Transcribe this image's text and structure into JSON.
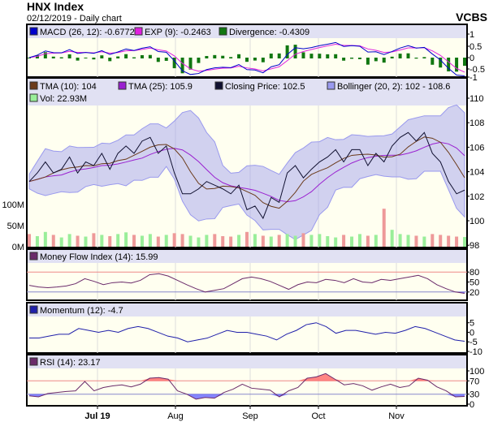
{
  "header": {
    "title": "HNX Index",
    "subtitle": "02/12/2019 - Daily chart",
    "brand": "VCBS"
  },
  "colors": {
    "plot_bg": "#fffff0",
    "legend_bg": "#e1e1f3",
    "macd": "#0000cc",
    "exp": "#e020e0",
    "divergence": "#117711",
    "tma10": "#6b3a1a",
    "tma25": "#9a20d0",
    "close": "#101030",
    "bollinger": "#9999ee",
    "vol_up": "#99ee99",
    "vol_down": "#ee9999",
    "mfi": "#6a2a6a",
    "momentum": "#2020aa",
    "rsi": "#6a2a6a",
    "over": "#ff6666",
    "under": "#6666ff"
  },
  "chart_data": [
    {
      "panel": "macd",
      "type": "line",
      "legend": [
        "MACD (26, 12): -0.6772",
        "EXP (9): -0.2463",
        "Divergence: -0.4309"
      ],
      "ylim": [
        -1,
        1
      ],
      "yticks": [
        "1",
        "0.5",
        "0",
        "-0.5",
        "-1"
      ]
    },
    {
      "panel": "price",
      "type": "line",
      "legend": [
        "TMA (10): 104",
        "TMA (25): 105.9",
        "Closing Price: 102.5",
        "Bollinger (20, 2): 102 - 108.6",
        "Vol: 22.93M"
      ],
      "ylim": [
        98,
        110
      ],
      "yticks": [
        "110",
        "108",
        "106",
        "104",
        "102",
        "100",
        "98"
      ],
      "vol_ticks": [
        "100M",
        "50M",
        "0M"
      ],
      "vol_max": 100,
      "close": [
        103.2,
        103.9,
        104.8,
        103.9,
        104.2,
        105.2,
        103.9,
        104.8,
        104.5,
        105.5,
        104.2,
        105.5,
        106.1,
        105.5,
        106.5,
        106.8,
        105.5,
        106.1,
        103.9,
        102.2,
        102.2,
        102.6,
        103.2,
        102.9,
        102.6,
        102.2,
        102.9,
        100.9,
        101.2,
        100.2,
        101.9,
        101.5,
        103.9,
        104.5,
        103.5,
        104.2,
        104.8,
        105.2,
        105.8,
        104.8,
        105.8,
        105.8,
        104.5,
        105.5,
        104.8,
        106.1,
        106.8,
        107.2,
        106.5,
        107.2,
        105.5,
        104.8,
        103.2,
        102.2,
        102.5
      ],
      "volume": [
        30,
        25,
        35,
        28,
        22,
        30,
        26,
        24,
        32,
        28,
        25,
        30,
        34,
        28,
        26,
        30,
        24,
        28,
        32,
        30,
        26,
        22,
        28,
        30,
        25,
        24,
        28,
        35,
        30,
        26,
        24,
        28,
        30,
        26,
        32,
        28,
        30,
        25,
        22,
        28,
        24,
        30,
        26,
        28,
        90,
        40,
        30,
        28,
        26,
        24,
        30,
        28,
        26,
        24,
        22.93
      ]
    },
    {
      "panel": "mfi",
      "type": "line",
      "legend": "Money Flow Index (14): 15.99",
      "ylim": [
        0,
        100
      ],
      "yticks": [
        "80",
        "50",
        "20"
      ],
      "values": [
        40,
        35,
        33,
        35,
        38,
        45,
        60,
        52,
        42,
        48,
        50,
        47,
        55,
        72,
        75,
        68,
        55,
        42,
        30,
        20,
        25,
        30,
        45,
        60,
        65,
        60,
        52,
        40,
        28,
        42,
        50,
        48,
        58,
        55,
        48,
        60,
        50,
        48,
        58,
        55,
        60,
        65,
        70,
        60,
        42,
        30,
        20,
        15.99
      ]
    },
    {
      "panel": "momentum",
      "type": "line",
      "legend": "Momentum (12): -4.7",
      "ylim": [
        -10,
        7
      ],
      "yticks": [
        "5",
        "0",
        "-5",
        "-10"
      ],
      "values": [
        -3,
        -3,
        -2,
        -1,
        -1,
        2,
        1,
        0,
        1,
        0,
        2,
        3,
        2,
        0,
        -2,
        -3,
        -5,
        -4,
        -3,
        -1,
        1,
        0,
        0,
        -1,
        -2,
        -4,
        -1,
        1,
        4,
        5,
        3,
        -0.5,
        1,
        1,
        0,
        -1,
        0,
        -0.5,
        1,
        3,
        2,
        0,
        -2,
        -4,
        -4.7
      ]
    },
    {
      "panel": "rsi",
      "type": "line",
      "legend": "RSI (14): 23.17",
      "ylim": [
        0,
        100
      ],
      "yticks": [
        "100",
        "70",
        "30",
        "0"
      ],
      "values": [
        25,
        22,
        32,
        35,
        38,
        40,
        68,
        40,
        50,
        55,
        58,
        52,
        60,
        78,
        80,
        75,
        40,
        30,
        15,
        20,
        18,
        35,
        45,
        60,
        48,
        45,
        42,
        22,
        40,
        50,
        78,
        82,
        92,
        75,
        58,
        62,
        55,
        42,
        52,
        60,
        50,
        55,
        78,
        72,
        52,
        40,
        22,
        23.17
      ]
    },
    {
      "x_ticks": [
        {
          "label": "Jul 19",
          "bold": true
        },
        {
          "label": "Aug"
        },
        {
          "label": "Sep"
        },
        {
          "label": "Oct"
        },
        {
          "label": "Nov"
        }
      ]
    }
  ]
}
